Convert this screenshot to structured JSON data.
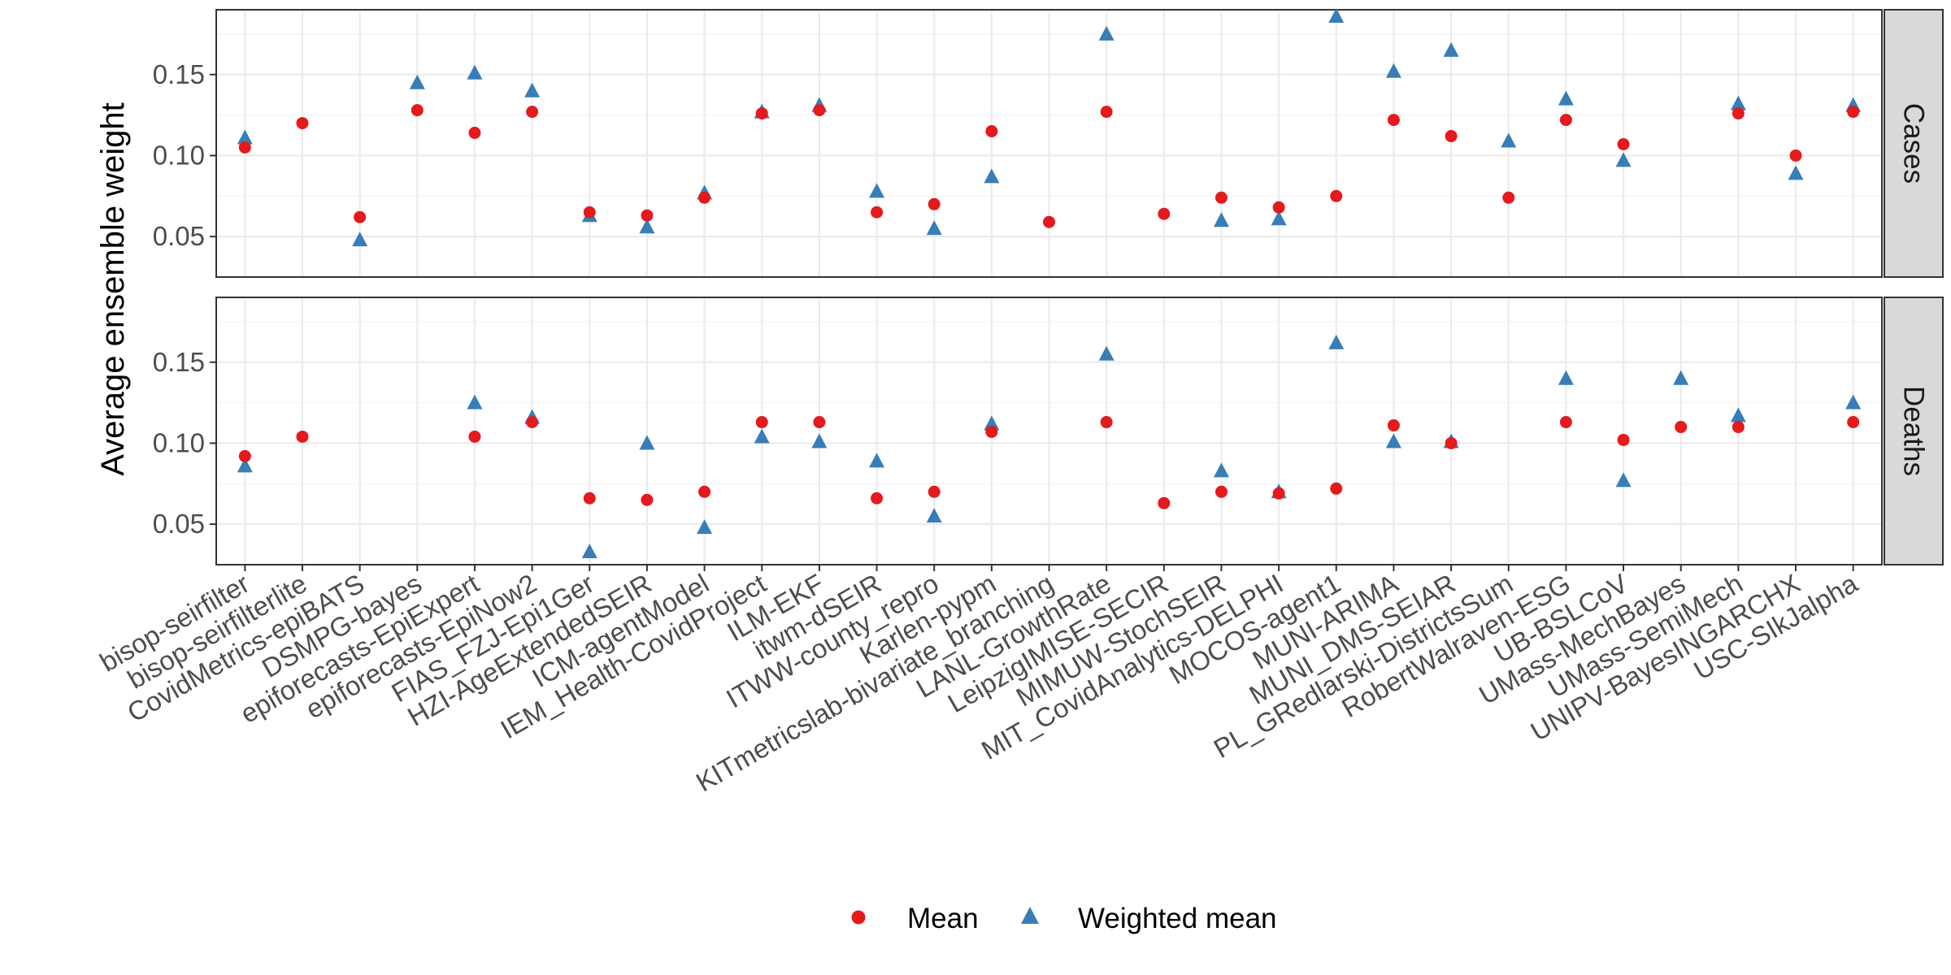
{
  "chart_data": {
    "type": "scatter",
    "ylabel": "Average ensemble weight",
    "xlabel": "",
    "ylim": [
      0.025,
      0.19
    ],
    "yticks": [
      0.05,
      0.1,
      0.15
    ],
    "ytick_labels": [
      "0.05",
      "0.10",
      "0.15"
    ],
    "grid": true,
    "legend_position": "bottom",
    "categories": [
      "bisop-seirfilter",
      "bisop-seirfilterlite",
      "CovidMetrics-epiBATS",
      "DSMPG-bayes",
      "epiforecasts-EpiExpert",
      "epiforecasts-EpiNow2",
      "FIAS_FZJ-Epi1Ger",
      "HZI-AgeExtendedSEIR",
      "ICM-agentModel",
      "IEM_Health-CovidProject",
      "ILM-EKF",
      "itwm-dSEIR",
      "ITWW-county_repro",
      "Karlen-pypm",
      "KITmetricslab-bivariate_branching",
      "LANL-GrowthRate",
      "LeipzigIMISE-SECIR",
      "MIMUW-StochSEIR",
      "MIT_CovidAnalytics-DELPHI",
      "MOCOS-agent1",
      "MUNI-ARIMA",
      "MUNI_DMS-SEIAR",
      "PL_GRedlarski-DistrictsSum",
      "RobertWalraven-ESG",
      "UB-BSLCoV",
      "UMass-MechBayes",
      "UMass-SemiMech",
      "UNIPV-BayesINGARCHX",
      "USC-SIkJalpha"
    ],
    "legend": [
      {
        "name": "Mean",
        "shape": "circle",
        "color": "#e41a1c"
      },
      {
        "name": "Weighted mean",
        "shape": "triangle",
        "color": "#377eb8"
      }
    ],
    "panels": [
      {
        "label": "Cases",
        "series": [
          {
            "name": "Mean",
            "values": [
              0.105,
              0.12,
              0.062,
              0.128,
              0.114,
              0.127,
              0.065,
              0.063,
              0.074,
              0.126,
              0.128,
              0.065,
              0.07,
              0.115,
              0.059,
              0.127,
              0.064,
              0.074,
              0.068,
              0.075,
              0.122,
              0.112,
              0.074,
              0.122,
              0.107,
              null,
              0.126,
              0.1,
              0.127
            ]
          },
          {
            "name": "Weighted mean",
            "values": [
              0.111,
              null,
              0.048,
              0.145,
              0.151,
              0.14,
              0.063,
              0.056,
              0.077,
              0.127,
              0.131,
              0.078,
              0.055,
              0.087,
              null,
              0.175,
              null,
              0.06,
              0.061,
              0.186,
              0.152,
              0.165,
              0.109,
              0.135,
              0.097,
              null,
              0.132,
              0.089,
              0.131
            ]
          }
        ]
      },
      {
        "label": "Deaths",
        "series": [
          {
            "name": "Mean",
            "values": [
              0.092,
              0.104,
              null,
              null,
              0.104,
              0.113,
              0.066,
              0.065,
              0.07,
              0.113,
              0.113,
              0.066,
              0.07,
              0.107,
              null,
              0.113,
              0.063,
              0.07,
              0.069,
              0.072,
              0.111,
              0.1,
              null,
              0.113,
              0.102,
              0.11,
              0.11,
              null,
              0.113
            ]
          },
          {
            "name": "Weighted mean",
            "values": [
              0.086,
              null,
              null,
              null,
              0.125,
              0.116,
              0.033,
              0.1,
              0.048,
              0.104,
              0.101,
              0.089,
              0.055,
              0.112,
              null,
              0.155,
              null,
              0.083,
              0.07,
              0.162,
              0.101,
              0.101,
              null,
              0.14,
              0.077,
              0.14,
              0.117,
              null,
              0.125
            ]
          }
        ]
      }
    ]
  }
}
